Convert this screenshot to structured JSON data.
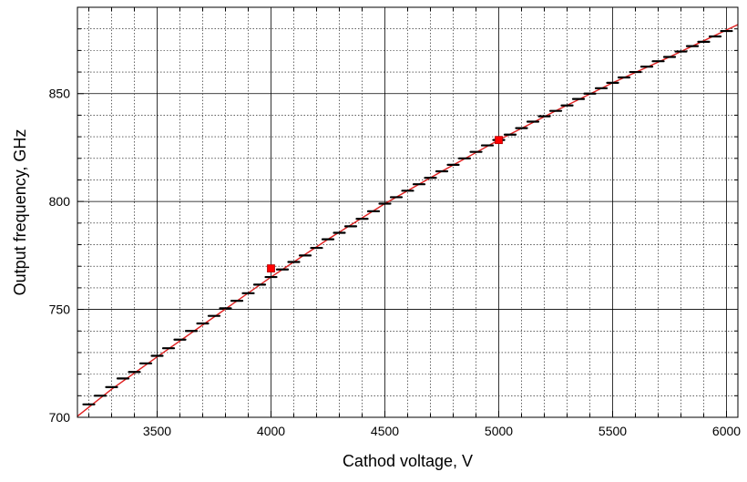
{
  "chart_data": {
    "type": "line",
    "title": "",
    "xlabel": "Cathod voltage, V",
    "ylabel": "Output frequency, GHz",
    "xlim": [
      3150,
      6050
    ],
    "ylim": [
      700,
      890
    ],
    "xticks": [
      3500,
      4000,
      4500,
      5000,
      5500,
      6000
    ],
    "yticks": [
      700,
      750,
      800,
      850
    ],
    "x_minor_step": 100,
    "y_minor_step": 10,
    "grid": {
      "major": "solid",
      "minor": "dotted"
    },
    "legend": "none",
    "series": [
      {
        "kind": "fit-line",
        "color": "#e02020",
        "x": [
          3150,
          3300,
          3500,
          3750,
          4000,
          4250,
          4500,
          4750,
          5000,
          5250,
          5500,
          5750,
          6050
        ],
        "y": [
          700.5,
          713,
          728,
          746.5,
          765,
          782.5,
          799,
          814,
          828.5,
          842,
          855,
          867,
          882
        ]
      },
      {
        "kind": "measured-steps",
        "color": "#000000",
        "x": [
          3200,
          3250,
          3300,
          3350,
          3400,
          3450,
          3500,
          3550,
          3600,
          3650,
          3700,
          3750,
          3800,
          3850,
          3900,
          3950,
          4000,
          4050,
          4100,
          4150,
          4200,
          4250,
          4300,
          4350,
          4400,
          4450,
          4500,
          4550,
          4600,
          4650,
          4700,
          4750,
          4800,
          4850,
          4900,
          4950,
          5000,
          5050,
          5100,
          5150,
          5200,
          5250,
          5300,
          5350,
          5400,
          5450,
          5500,
          5550,
          5600,
          5650,
          5700,
          5750,
          5800,
          5850,
          5900,
          5950,
          6000
        ],
        "y": [
          706,
          710,
          714,
          718,
          721,
          725,
          728.5,
          732,
          736,
          740,
          743.5,
          747,
          750.5,
          754,
          757.5,
          761.5,
          765,
          768.5,
          772,
          775,
          778.5,
          782.5,
          785.5,
          788.5,
          792,
          795.5,
          799,
          802,
          805,
          808,
          811,
          814,
          817,
          820,
          823,
          826,
          828.5,
          831,
          834,
          837,
          839.5,
          842,
          844.5,
          847.5,
          850,
          852.5,
          855,
          857.5,
          860,
          862.5,
          865,
          867,
          869.5,
          872,
          874,
          876.5,
          879
        ]
      },
      {
        "kind": "markers",
        "color": "#ff0000",
        "x": [
          4000,
          5000
        ],
        "y": [
          769,
          828.5
        ]
      }
    ]
  }
}
